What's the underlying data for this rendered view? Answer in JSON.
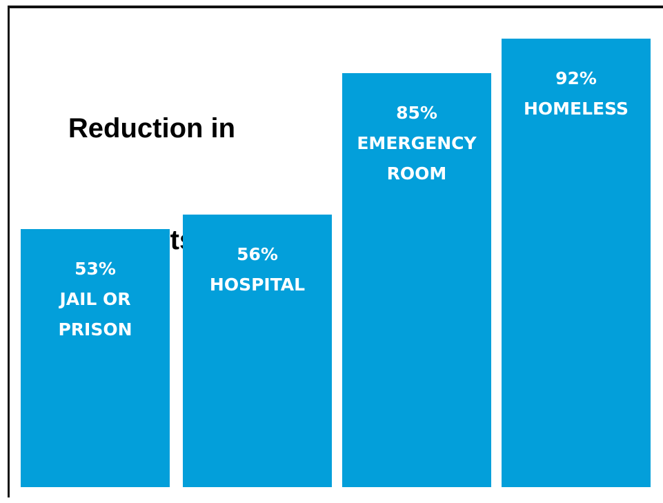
{
  "chart_data": {
    "type": "bar",
    "title_lines": [
      "Reduction in",
      "Nights"
    ],
    "xlabel": "",
    "ylabel": "",
    "ylim": [
      0,
      100
    ],
    "grid": false,
    "legend": "none",
    "bar_color": "#039fda",
    "categories": [
      "JAIL OR PRISON",
      "HOSPITAL",
      "EMERGENCY ROOM",
      "HOMELESS"
    ],
    "values": [
      53,
      56,
      85,
      92
    ],
    "data_labels": [
      [
        "53%",
        "JAIL OR",
        "PRISON"
      ],
      [
        "56%",
        "HOSPITAL"
      ],
      [
        "85%",
        "EMERGENCY",
        "ROOM"
      ],
      [
        "92%",
        "HOMELESS"
      ]
    ]
  }
}
